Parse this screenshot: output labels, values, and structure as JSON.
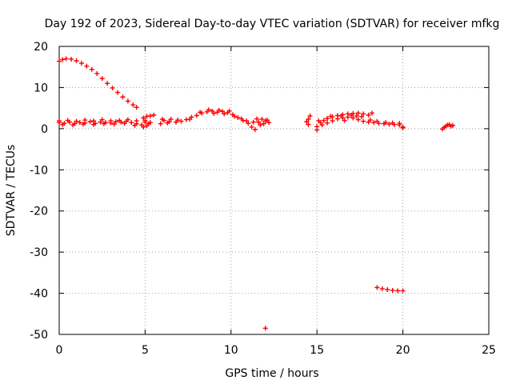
{
  "chart_data": {
    "type": "scatter",
    "title": "Day 192 of 2023, Sidereal Day-to-day VTEC variation (SDTVAR) for receiver mfkg",
    "xlabel": "GPS time / hours",
    "ylabel": "SDTVAR / TECUs",
    "xlim": [
      0,
      25
    ],
    "ylim": [
      -50,
      20
    ],
    "xticks": [
      "0",
      "5",
      "10",
      "15",
      "20",
      "25"
    ],
    "yticks": [
      "20",
      "10",
      "0",
      "-10",
      "-20",
      "-30",
      "-40",
      "-50"
    ],
    "grid": true,
    "marker": "+",
    "color": "#ff0000",
    "series": [
      {
        "name": "SDTVAR",
        "points": [
          [
            0.0,
            16.4
          ],
          [
            0.2,
            16.8
          ],
          [
            0.4,
            17.0
          ],
          [
            0.7,
            16.9
          ],
          [
            1.0,
            16.5
          ],
          [
            1.3,
            15.9
          ],
          [
            1.6,
            15.2
          ],
          [
            1.9,
            14.4
          ],
          [
            2.2,
            13.4
          ],
          [
            2.5,
            12.2
          ],
          [
            2.8,
            11.0
          ],
          [
            3.1,
            9.9
          ],
          [
            3.4,
            8.8
          ],
          [
            3.7,
            7.7
          ],
          [
            4.0,
            6.7
          ],
          [
            4.3,
            5.8
          ],
          [
            4.5,
            5.2
          ],
          [
            0.0,
            1.5
          ],
          [
            0.3,
            1.3
          ],
          [
            0.6,
            1.6
          ],
          [
            0.9,
            1.2
          ],
          [
            1.2,
            1.5
          ],
          [
            1.5,
            1.4
          ],
          [
            1.8,
            1.7
          ],
          [
            2.1,
            1.3
          ],
          [
            2.4,
            1.6
          ],
          [
            2.7,
            1.5
          ],
          [
            3.0,
            1.4
          ],
          [
            3.3,
            1.7
          ],
          [
            3.6,
            1.6
          ],
          [
            3.9,
            1.8
          ],
          [
            4.2,
            1.5
          ],
          [
            4.5,
            1.2
          ],
          [
            4.8,
            0.9
          ],
          [
            5.1,
            0.7
          ],
          [
            0.0,
            1.9
          ],
          [
            0.5,
            2.0
          ],
          [
            1.0,
            1.8
          ],
          [
            1.5,
            2.1
          ],
          [
            2.0,
            1.9
          ],
          [
            2.5,
            2.2
          ],
          [
            3.0,
            1.9
          ],
          [
            3.5,
            2.0
          ],
          [
            4.0,
            2.2
          ],
          [
            4.5,
            1.9
          ],
          [
            5.0,
            1.6
          ],
          [
            0.2,
            1.0
          ],
          [
            0.8,
            0.9
          ],
          [
            1.4,
            1.1
          ],
          [
            2.0,
            1.0
          ],
          [
            2.6,
            1.2
          ],
          [
            3.2,
            1.1
          ],
          [
            3.8,
            1.3
          ],
          [
            4.4,
            0.8
          ],
          [
            4.9,
            0.4
          ],
          [
            5.2,
            1.2
          ],
          [
            4.9,
            2.6
          ],
          [
            5.1,
            3.0
          ],
          [
            5.3,
            3.1
          ],
          [
            5.5,
            3.3
          ],
          [
            5.0,
            2.0
          ],
          [
            5.3,
            1.5
          ],
          [
            5.9,
            1.2
          ],
          [
            6.1,
            2.0
          ],
          [
            6.3,
            1.4
          ],
          [
            6.5,
            2.3
          ],
          [
            6.8,
            1.6
          ],
          [
            7.1,
            1.8
          ],
          [
            7.4,
            2.2
          ],
          [
            7.7,
            2.8
          ],
          [
            8.0,
            3.2
          ],
          [
            8.3,
            3.8
          ],
          [
            8.6,
            4.1
          ],
          [
            8.9,
            4.3
          ],
          [
            9.2,
            4.0
          ],
          [
            9.5,
            4.2
          ],
          [
            9.8,
            3.9
          ],
          [
            10.1,
            3.4
          ],
          [
            10.4,
            2.7
          ],
          [
            10.7,
            2.0
          ],
          [
            11.0,
            1.3
          ],
          [
            11.2,
            0.4
          ],
          [
            11.4,
            -0.2
          ],
          [
            11.3,
            1.6
          ],
          [
            6.0,
            2.3
          ],
          [
            6.4,
            1.7
          ],
          [
            6.9,
            2.1
          ],
          [
            7.6,
            2.3
          ],
          [
            8.2,
            4.0
          ],
          [
            8.7,
            4.6
          ],
          [
            9.0,
            3.7
          ],
          [
            9.3,
            4.5
          ],
          [
            9.6,
            3.6
          ],
          [
            9.9,
            4.3
          ],
          [
            10.2,
            3.0
          ],
          [
            10.6,
            2.4
          ],
          [
            10.9,
            1.9
          ],
          [
            11.6,
            1.6
          ],
          [
            11.8,
            2.3
          ],
          [
            12.0,
            1.9
          ],
          [
            12.2,
            1.5
          ],
          [
            11.7,
            0.9
          ],
          [
            11.9,
            1.2
          ],
          [
            12.1,
            2.1
          ],
          [
            11.5,
            2.4
          ],
          [
            12.0,
            -48.5
          ],
          [
            14.5,
            1.0
          ],
          [
            14.5,
            2.3
          ],
          [
            14.6,
            3.1
          ],
          [
            14.4,
            1.7
          ],
          [
            15.0,
            0.5
          ],
          [
            15.2,
            1.5
          ],
          [
            15.4,
            2.0
          ],
          [
            15.6,
            2.5
          ],
          [
            15.9,
            2.9
          ],
          [
            16.2,
            3.2
          ],
          [
            16.5,
            3.4
          ],
          [
            16.8,
            3.6
          ],
          [
            17.1,
            3.7
          ],
          [
            17.4,
            3.8
          ],
          [
            17.7,
            3.6
          ],
          [
            18.0,
            3.3
          ],
          [
            18.2,
            3.8
          ],
          [
            15.3,
            0.9
          ],
          [
            15.6,
            1.4
          ],
          [
            15.9,
            1.9
          ],
          [
            16.2,
            2.4
          ],
          [
            16.5,
            2.6
          ],
          [
            16.8,
            2.8
          ],
          [
            17.1,
            2.6
          ],
          [
            17.4,
            2.2
          ],
          [
            17.7,
            1.8
          ],
          [
            18.0,
            1.6
          ],
          [
            18.3,
            1.5
          ],
          [
            18.6,
            1.3
          ],
          [
            18.9,
            1.2
          ],
          [
            19.2,
            1.1
          ],
          [
            19.5,
            1.0
          ],
          [
            19.8,
            0.9
          ],
          [
            20.0,
            0.4
          ],
          [
            15.1,
            1.9
          ],
          [
            15.8,
            3.0
          ],
          [
            16.4,
            3.1
          ],
          [
            17.0,
            3.3
          ],
          [
            17.6,
            2.9
          ],
          [
            18.1,
            2.1
          ],
          [
            18.5,
            1.8
          ],
          [
            19.0,
            1.5
          ],
          [
            19.4,
            1.4
          ],
          [
            19.8,
            1.3
          ],
          [
            20.0,
            0.2
          ],
          [
            15.0,
            -0.3
          ],
          [
            16.6,
            2.0
          ],
          [
            17.3,
            3.1
          ],
          [
            18.5,
            -38.6
          ],
          [
            18.8,
            -38.9
          ],
          [
            19.1,
            -39.1
          ],
          [
            19.4,
            -39.3
          ],
          [
            19.7,
            -39.4
          ],
          [
            20.0,
            -39.4
          ],
          [
            22.3,
            -0.1
          ],
          [
            22.4,
            0.3
          ],
          [
            22.5,
            0.6
          ],
          [
            22.6,
            0.9
          ],
          [
            22.7,
            1.0
          ],
          [
            22.8,
            0.6
          ],
          [
            22.9,
            0.8
          ]
        ]
      }
    ]
  }
}
